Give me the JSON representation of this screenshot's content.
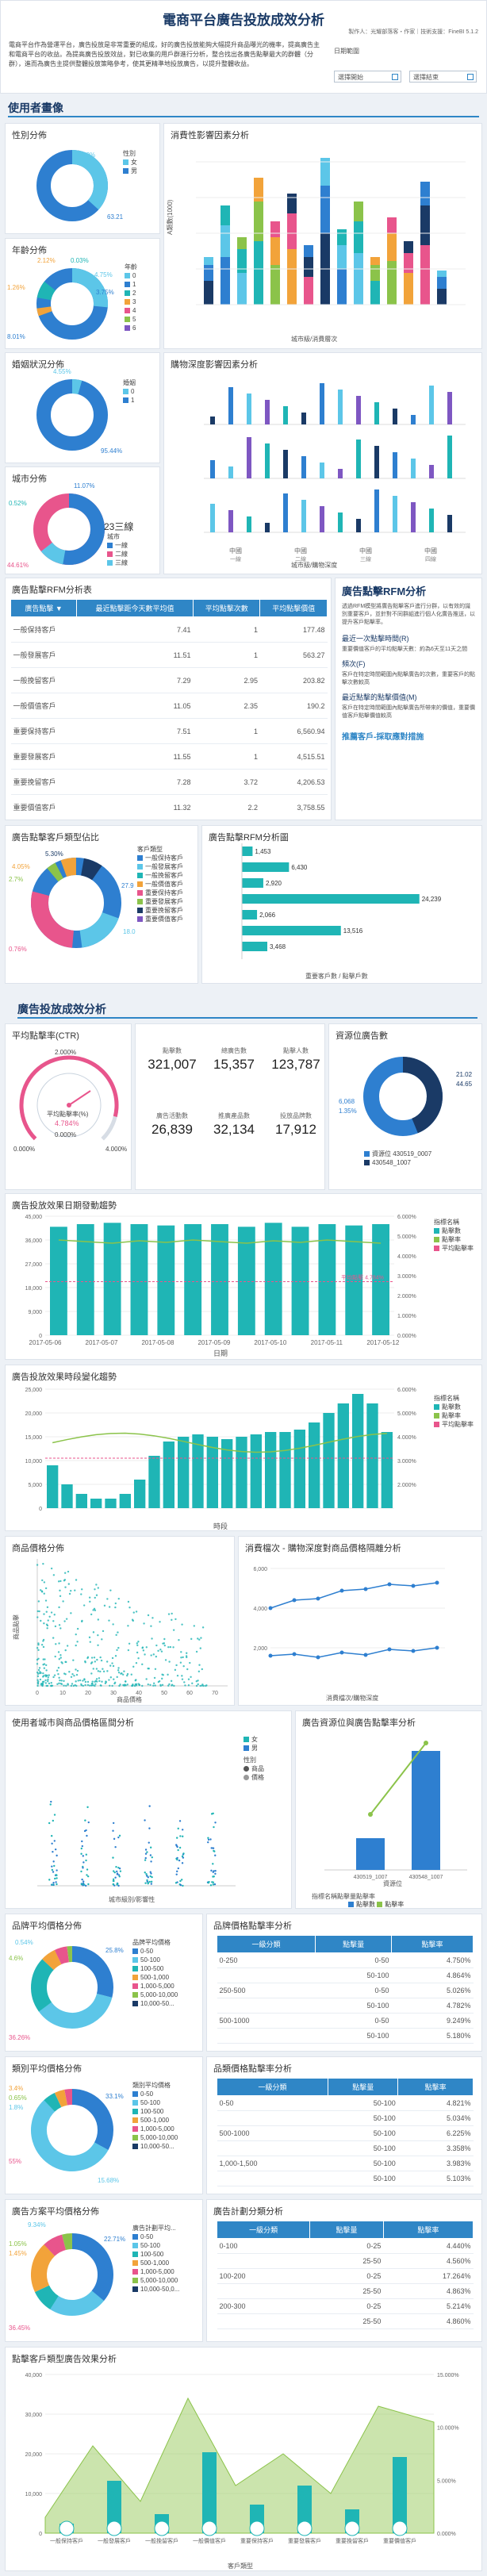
{
  "header": {
    "title": "電商平台廣告投放成效分析",
    "byline": "製作人：光耀部落客・作家｜技術支援：FineBI 5.1.2",
    "intro": "電商平台作為營運平台，廣告投放是非常重要的組成，好的廣告投放能夠大幅提升商品曝光的機率，提高廣告主和電商平台的收益。為提高廣告投放效益，對已收集的用戶群進行分析，整合找出各廣告點擊最大的群體（分群），進而為廣告主提供整體投放策略參考，使其更精準地投放廣告，以提升整體收益。",
    "filter_label": "日期範圍",
    "filter_a": "選擇開始",
    "filter_b": "選擇結束",
    "cal_icon": "calendar-icon"
  },
  "sections": {
    "user": "使用者畫像",
    "ad": "廣告投放成效分析"
  },
  "gender": {
    "title": "性別分佈",
    "legend_title": "性別",
    "legend": [
      "女",
      "男"
    ],
    "labels": [
      "36.79%",
      "63.21"
    ]
  },
  "age": {
    "title": "年齡分佈",
    "legend_title": "年齡",
    "legend": [
      "0",
      "1",
      "2",
      "3",
      "4",
      "5",
      "6"
    ],
    "labels": [
      "2.12%",
      "0.03%",
      "4.75%",
      "1.26%",
      "3.75%",
      "8.01%"
    ]
  },
  "spend": {
    "title": "消費性影響因素分析",
    "xlabel": "城市級/消費層次",
    "ylabel": "A類數(1000)"
  },
  "marriage": {
    "title": "婚姻狀況分佈",
    "legend_title": "婚姻",
    "legend": [
      "0",
      "1"
    ],
    "labels": [
      "4.55%",
      "95.44%"
    ]
  },
  "depth": {
    "title": "購物深度影響因素分析",
    "xlabel": "城市級/購物深度",
    "ticks": [
      "中國",
      "中國",
      "中國",
      "中國"
    ],
    "sub": [
      "一線",
      "二線",
      "三線",
      "四線"
    ]
  },
  "city": {
    "title": "城市分佈",
    "legend_title": "城市",
    "legend": [
      "一線",
      "二線",
      "三線"
    ],
    "labels": [
      "0.52%",
      "11.07%",
      "44.61%"
    ],
    "center": "23三線"
  },
  "rfm_table": {
    "title": "廣告點擊RFM分析表",
    "headers": [
      "廣告點擊 ▼",
      "最近點擊距今天數平均值",
      "平均點擊次數",
      "平均點擊價值"
    ],
    "rows": [
      [
        "一般保持客戶",
        "7.41",
        "1",
        "177.48"
      ],
      [
        "一般發展客戶",
        "11.51",
        "1",
        "563.27"
      ],
      [
        "一般挽留客戶",
        "7.29",
        "2.95",
        "203.82"
      ],
      [
        "一般價值客戶",
        "11.05",
        "2.35",
        "190.2"
      ],
      [
        "重要保持客戶",
        "7.51",
        "1",
        "6,560.94"
      ],
      [
        "重要發展客戶",
        "11.55",
        "1",
        "4,515.51"
      ],
      [
        "重要挽留客戶",
        "7.28",
        "3.72",
        "4,206.53"
      ],
      [
        "重要價值客戶",
        "11.32",
        "2.2",
        "3,758.55"
      ]
    ]
  },
  "rfm_text": {
    "title": "廣告點擊RFM分析",
    "p1": "透過RFM模型將廣告點擊客戶進行分群，以有效的識別重要客戶，並針對不同群組進行個人化廣告推送，以提升客戶點擊率。",
    "p2": "最近一次點擊時間(R)",
    "p3": "重要價值客戶的平均點擊天數：約為6天至11天之間",
    "p4": "頻次(F)",
    "p5": "客戶在特定時間範圍內點擊廣告的次數，重要客戶的點擊次數較高",
    "p6": "最近點擊的點擊價值(M)",
    "p7": "客戶在特定時間範圍內點擊廣告所帶來的價值，重要價值客戶點擊價值較高",
    "link": "推薦客戶-採取應對措施"
  },
  "rfm_pie": {
    "title": "廣告點擊客戶類型佔比",
    "legend_title": "客戶類型",
    "legend": [
      "一般保持客戶",
      "一般發展客戶",
      "一般挽留客戶",
      "一般價值客戶",
      "重要保持客戶",
      "重要發展客戶",
      "重要挽留客戶",
      "重要價值客戶"
    ],
    "labels": [
      "5.30%",
      "4.05%",
      "2.7%",
      "27.9",
      "18.0",
      "0.76%"
    ]
  },
  "rfm_bar": {
    "title": "廣告點擊RFM分析圖",
    "xlabel": "重要客戶數 / 點擊戶數",
    "labels": [
      "1,453",
      "6,430",
      "2,920",
      "24,239",
      "2,066",
      "13,516",
      "3,468"
    ]
  },
  "ctr": {
    "title": "平均點擊率(CTR)",
    "gauge_top": "2.000%",
    "gauge_l": "0.000%",
    "gauge_r": "4.000%",
    "inner_label": "平均點擊率(%)",
    "inner_val": "4.784%",
    "inner_zero": "0.000%"
  },
  "kpis": [
    {
      "label": "點擊數",
      "value": "321,007"
    },
    {
      "label": "總廣告數",
      "value": "15,357"
    },
    {
      "label": "點擊人數",
      "value": "123,787"
    },
    {
      "label": "廣告活動數",
      "value": "26,839"
    },
    {
      "label": "推廣產品數",
      "value": "32,134"
    },
    {
      "label": "投放品牌數",
      "value": "17,912"
    }
  ],
  "pos": {
    "title": "資源位廣告數",
    "labels": [
      "21.02",
      "44.65",
      "6,068",
      "1.35%"
    ],
    "legend": [
      "資源位 430519_0007",
      "430548_1007"
    ]
  },
  "daily": {
    "title": "廣告投放效果日期發動趨勢",
    "xlabel": "日期",
    "legend_title": "指標名稱",
    "legend": [
      "點擊數",
      "點擊率",
      "平均點擊率"
    ],
    "dates": [
      "2017-05-06",
      "2017-05-07",
      "2017-05-08",
      "2017-05-09",
      "2017-05-10",
      "2017-05-11",
      "2017-05-12"
    ],
    "yticks": [
      "45,000",
      "36,000",
      "27,000",
      "18,000",
      "9,000",
      "0"
    ],
    "rticks": [
      "6.000%",
      "5.000%",
      "4.000%",
      "3.000%",
      "2.000%",
      "1.000%",
      "0.000%"
    ],
    "avg_label": "平均點擊 4.784%"
  },
  "hourly": {
    "title": "廣告投放效果時段變化趨勢",
    "xlabel": "時段",
    "legend_title": "指標名稱",
    "legend": [
      "點擊數",
      "點擊率",
      "平均點擊率"
    ],
    "yticks": [
      "25,000",
      "20,000",
      "15,000",
      "10,000",
      "5,000",
      "0"
    ],
    "rticks": [
      "6.000%",
      "5.000%",
      "4.000%",
      "3.000%",
      "2.000%"
    ]
  },
  "price_scatter": {
    "title": "商品價格分佈",
    "xlabel": "商品價格",
    "ylabel": "商品點擊",
    "xticks": [
      "0",
      "10",
      "20",
      "30",
      "40",
      "50",
      "60",
      "70"
    ]
  },
  "spend_click": {
    "title": "消費檔次 - 購物深度對商品價格隔離分析",
    "xlabel": "消費檔次/購物深度",
    "yticks": [
      "6,000",
      "4,000",
      "2,000"
    ]
  },
  "city_gender": {
    "title": "使用者城市與商品價格區間分析",
    "xlabel": "城市級別/影響性",
    "legend": [
      "女",
      "男"
    ],
    "legend2_title": "性別",
    "legend2": [
      "商品",
      "價格"
    ]
  },
  "ad_pos_gender": {
    "title": "廣告資源位與廣告點擊率分析",
    "xlabel": "資源位",
    "ticks": [
      "430519_1007",
      "430548_1007"
    ],
    "note": "指標名稱點擊量點擊率",
    "legend": [
      "點擊數",
      "點擊率"
    ]
  },
  "brand_pie": {
    "title": "品牌平均價格分佈",
    "legend_title": "品牌平均價格",
    "legend": [
      "0-50",
      "50-100",
      "100-500",
      "500-1,000",
      "1,000-5,000",
      "5,000-10,000",
      "10,000-50..."
    ],
    "labels": [
      "0.54%",
      "4.6%",
      "25.8%",
      "36.26%"
    ]
  },
  "brand_table": {
    "title": "品牌價格點擊率分析",
    "headers": [
      "一級分類",
      "點擊量",
      "點擊率"
    ],
    "rows": [
      [
        "0-250",
        "0-50",
        "4.750%"
      ],
      [
        "",
        "50-100",
        "4.864%"
      ],
      [
        "250-500",
        "0-50",
        "5.026%"
      ],
      [
        "",
        "50-100",
        "4.782%"
      ],
      [
        "500-1000",
        "0-50",
        "9.249%"
      ],
      [
        "",
        "50-100",
        "5.180%"
      ]
    ]
  },
  "cat_pie": {
    "title": "類別平均價格分佈",
    "legend_title": "類別平均價格",
    "legend": [
      "0-50",
      "50-100",
      "100-500",
      "500-1,000",
      "1,000-5,000",
      "5,000-10,000",
      "10,000-50..."
    ],
    "labels": [
      "3.4%",
      "0.65%",
      "33.1%",
      "1.8%",
      "15.68%",
      "55%"
    ]
  },
  "cat_table": {
    "title": "品類價格點擊率分析",
    "headers": [
      "一級分類",
      "點擊量",
      "點擊率"
    ],
    "rows": [
      [
        "0-50",
        "50-100",
        "4.821%"
      ],
      [
        "",
        "50-100",
        "5.034%"
      ],
      [
        "500-1000",
        "50-100",
        "6.225%"
      ],
      [
        "",
        "50-100",
        "3.358%"
      ],
      [
        "1,000-1,500",
        "50-100",
        "3.983%"
      ],
      [
        "",
        "50-100",
        "5.103%"
      ]
    ]
  },
  "ad_pie": {
    "title": "廣告方案平均價格分佈",
    "legend_title": "廣告計劃平均...",
    "legend": [
      "0-50",
      "50-100",
      "100-500",
      "500-1,000",
      "1,000-5,000",
      "5,000-10,000",
      "10,000-50,0..."
    ],
    "labels": [
      "9.34%",
      "22.71%",
      "1.05%",
      "1.45%",
      "36.45%"
    ]
  },
  "ad_table": {
    "title": "廣告計劃分類分析",
    "headers": [
      "一級分類",
      "點擊量",
      "點擊率"
    ],
    "rows": [
      [
        "0-100",
        "0-25",
        "4.440%"
      ],
      [
        "",
        "25-50",
        "4.560%"
      ],
      [
        "100-200",
        "0-25",
        "17.264%"
      ],
      [
        "",
        "25-50",
        "4.863%"
      ],
      [
        "200-300",
        "0-25",
        "5.214%"
      ],
      [
        "",
        "25-50",
        "4.860%"
      ]
    ]
  },
  "final": {
    "title": "點擊客戶類型廣告效果分析",
    "xlabel": "客戶類型",
    "yticks": [
      "40,000",
      "30,000",
      "20,000",
      "10,000",
      "0"
    ],
    "rticks": [
      "15.000%",
      "10.000%",
      "5.000%",
      "0.000%"
    ],
    "ticks": [
      "一般保持客戶",
      "一般發展客戶",
      "一般挽留客戶",
      "一般價值客戶",
      "重要保持客戶",
      "重要發展客戶",
      "重要挽留客戶",
      "重要價值客戶"
    ]
  },
  "colors": {
    "accent": "#2f86c6",
    "teal": "#1fb5b5",
    "blue": "#2e7fd0",
    "pink": "#e8558c",
    "orange": "#f2a33a",
    "gray": "#d7dde5",
    "line": "#8bc34a"
  }
}
